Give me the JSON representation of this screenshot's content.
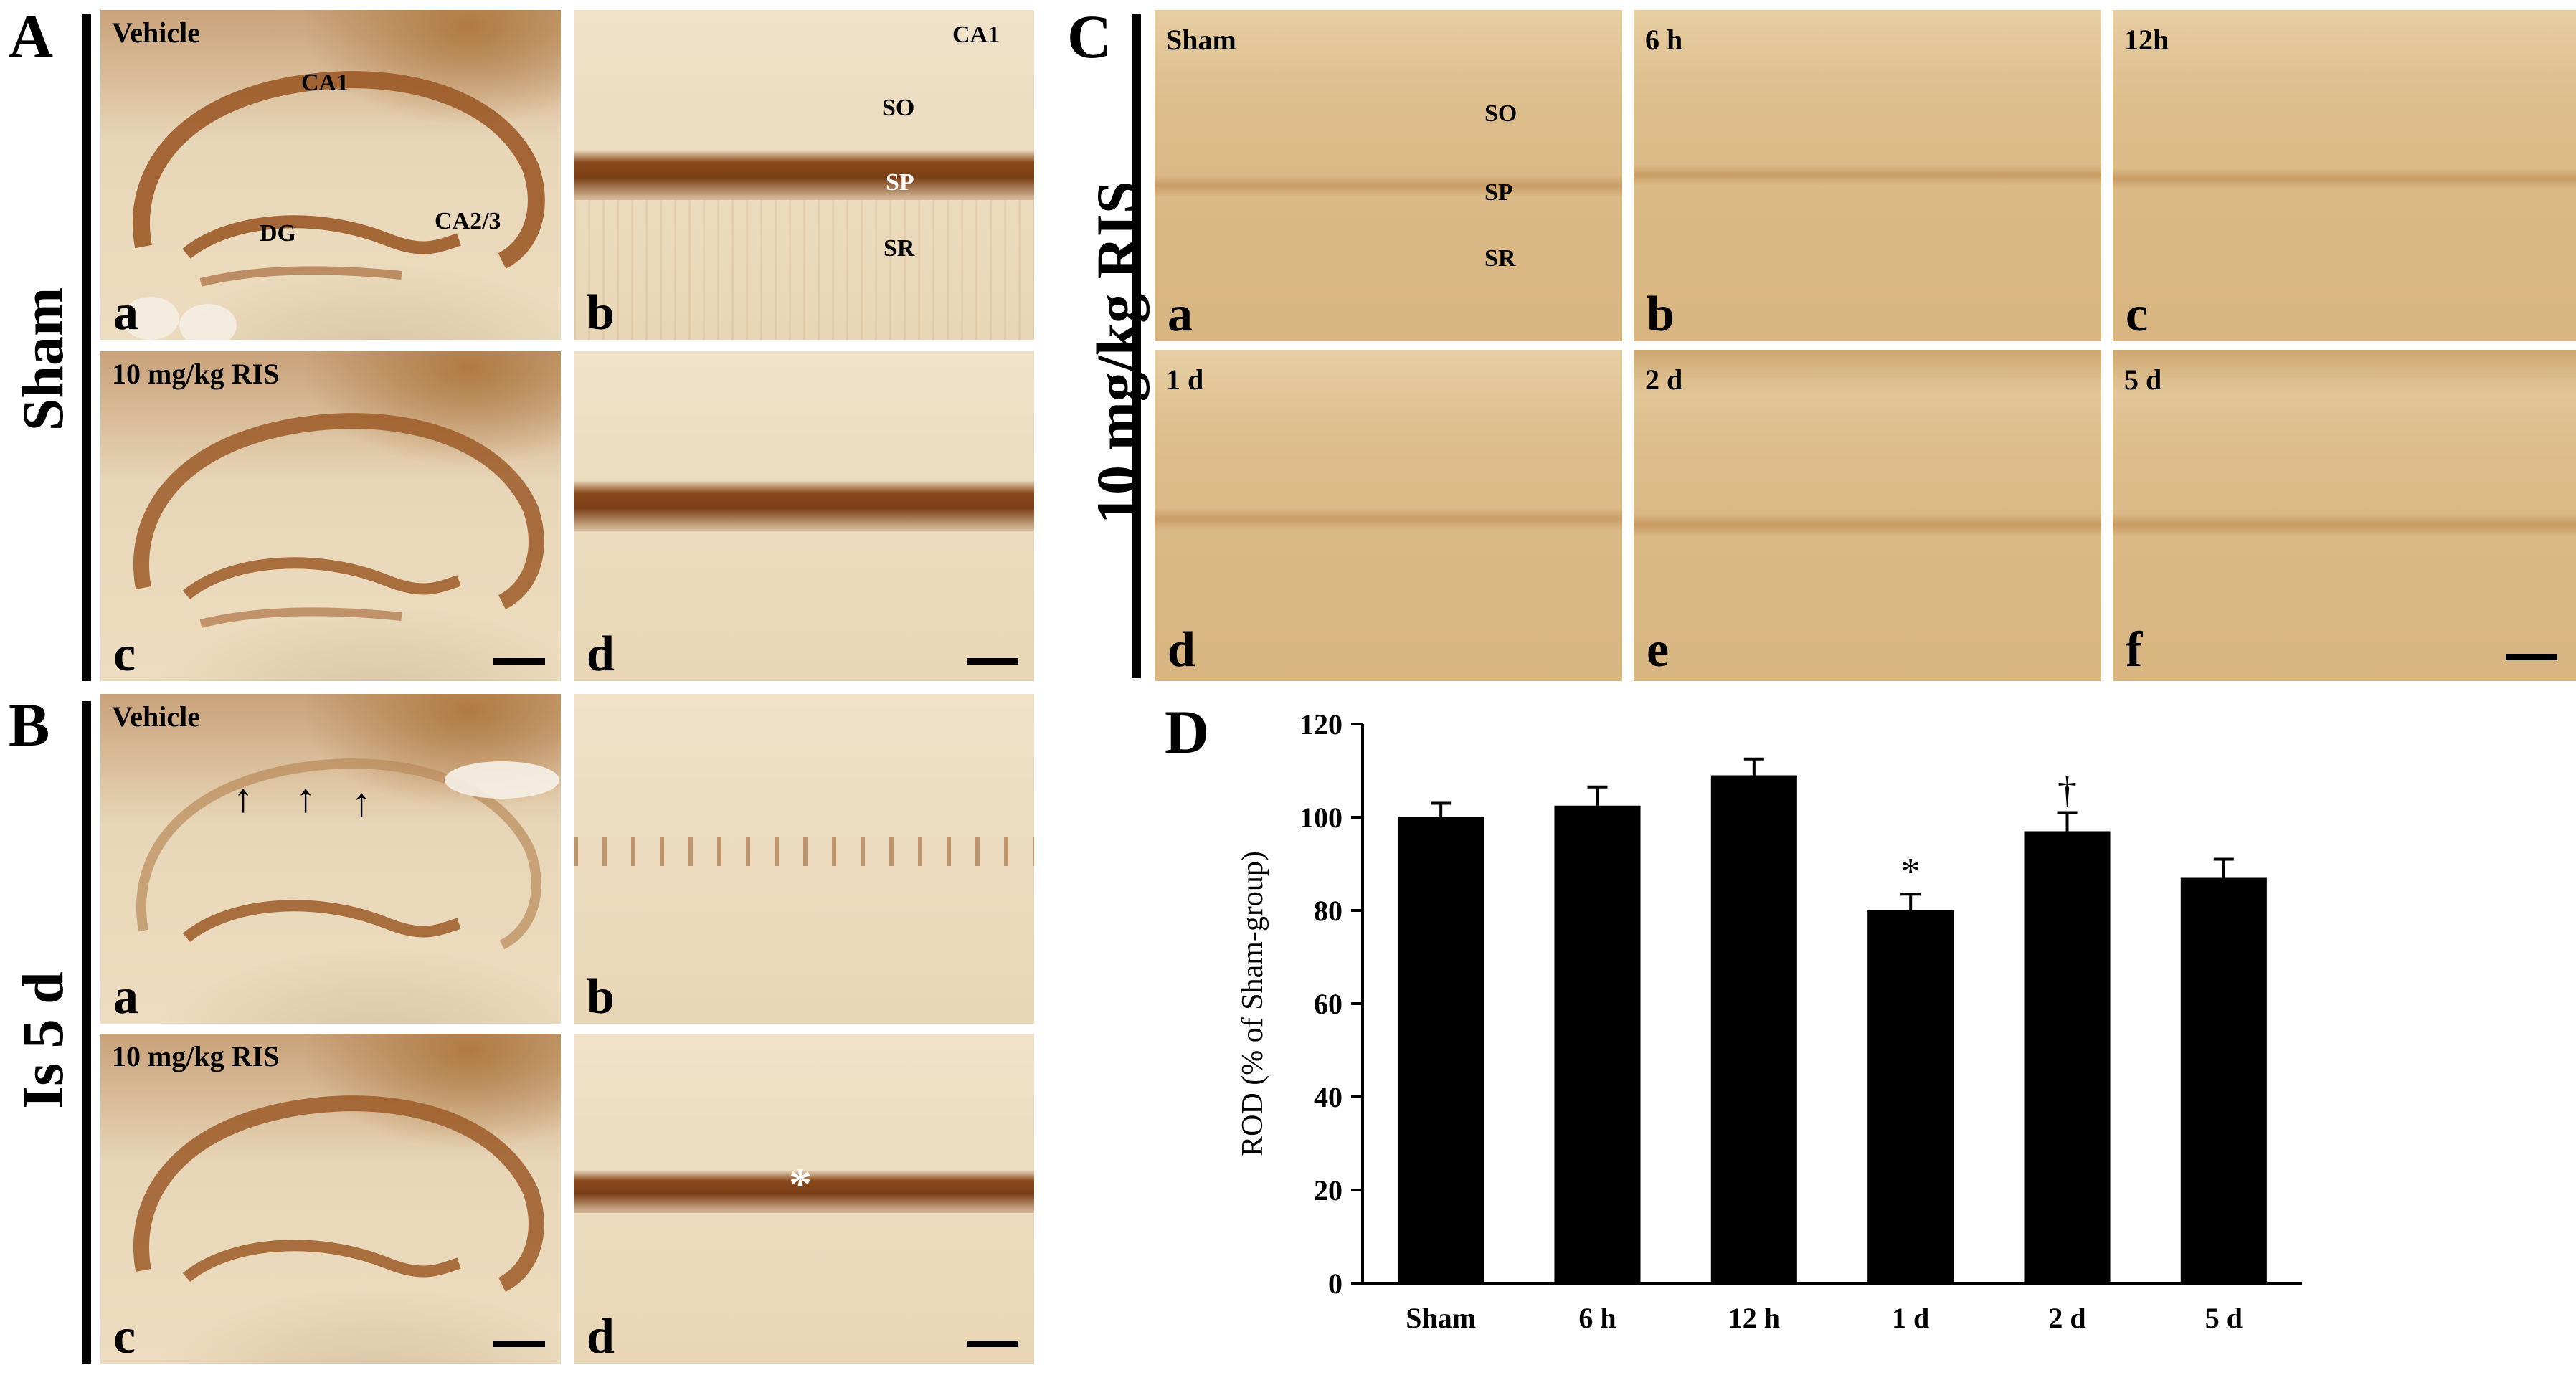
{
  "group_A": {
    "letter": "A",
    "side_label": "Sham"
  },
  "group_B": {
    "letter": "B",
    "side_label": "Is 5 d"
  },
  "group_C": {
    "letter": "C",
    "side_label": "10 mg/kg RIS"
  },
  "group_D": {
    "letter": "D"
  },
  "A": {
    "a": {
      "letter": "a",
      "title": "Vehicle",
      "labels": [
        "CA1",
        "DG",
        "CA2/3"
      ]
    },
    "b": {
      "letter": "b",
      "labels": [
        "CA1",
        "SO",
        "SP",
        "SR"
      ]
    },
    "c": {
      "letter": "c",
      "title": "10 mg/kg RIS"
    },
    "d": {
      "letter": "d"
    }
  },
  "B": {
    "a": {
      "letter": "a",
      "title": "Vehicle",
      "arrows": [
        "↑",
        "↑",
        "↑"
      ]
    },
    "b": {
      "letter": "b"
    },
    "c": {
      "letter": "c",
      "title": "10 mg/kg RIS"
    },
    "d": {
      "letter": "d",
      "asterisk": "*"
    }
  },
  "C": {
    "a": {
      "letter": "a",
      "title": "Sham",
      "labels": [
        "SO",
        "SP",
        "SR"
      ]
    },
    "b": {
      "letter": "b",
      "title": "6 h"
    },
    "c": {
      "letter": "c",
      "title": "12h"
    },
    "d": {
      "letter": "d",
      "title": "1 d"
    },
    "e": {
      "letter": "e",
      "title": "2 d"
    },
    "f": {
      "letter": "f",
      "title": "5 d"
    }
  },
  "colors": {
    "stain_dark": "#8a4a1c",
    "stain_mid": "#b07a44",
    "tan": "#dab985",
    "bar": "#000000"
  },
  "chart_data": {
    "type": "bar",
    "categories": [
      "Sham",
      "6 h",
      "12 h",
      "1 d",
      "2 d",
      "5 d"
    ],
    "values": [
      100,
      102.5,
      109,
      80,
      97,
      87
    ],
    "errors": [
      3,
      4,
      3.5,
      3.5,
      4,
      4
    ],
    "annotations": [
      "",
      "",
      "",
      "*",
      "†",
      ""
    ],
    "ylabel": "ROD (% of Sham-group)",
    "ylim": [
      0,
      120
    ],
    "yticks": [
      0,
      20,
      40,
      60,
      80,
      100,
      120
    ],
    "grid": false
  }
}
